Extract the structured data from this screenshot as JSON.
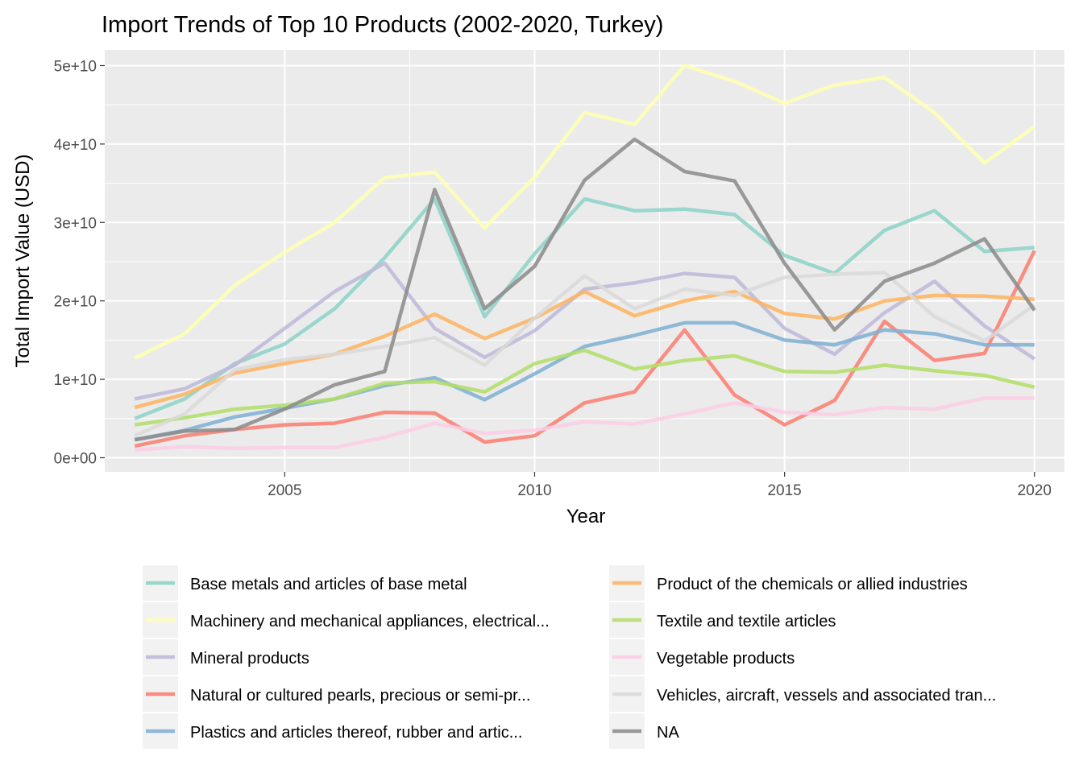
{
  "chart_data": {
    "type": "line",
    "title": "Import Trends of Top 10 Products (2002-2020, Turkey)",
    "xlabel": "Year",
    "ylabel": "Total Import Value (USD)",
    "xlim": [
      2001.4,
      2020.6
    ],
    "ylim": [
      -1800000000.0,
      52000000000.0
    ],
    "x_ticks": [
      2005,
      2010,
      2015,
      2020
    ],
    "x_tick_labels": [
      "2005",
      "2010",
      "2015",
      "2020"
    ],
    "y_ticks": [
      0,
      10000000000,
      20000000000,
      30000000000,
      40000000000,
      50000000000
    ],
    "y_tick_labels": [
      "0e+00",
      "1e+10",
      "2e+10",
      "3e+10",
      "4e+10",
      "5e+10"
    ],
    "grid": true,
    "legend_position": "bottom",
    "x": [
      2002,
      2003,
      2004,
      2005,
      2006,
      2007,
      2008,
      2009,
      2010,
      2011,
      2012,
      2013,
      2014,
      2015,
      2016,
      2017,
      2018,
      2019,
      2020
    ],
    "series": [
      {
        "name": "Base metals and articles of base metal",
        "color": "#8DD3C7",
        "values": [
          5000000000.0,
          7500000000.0,
          12000000000.0,
          14500000000.0,
          19000000000.0,
          25500000000.0,
          33000000000.0,
          18000000000.0,
          26000000000.0,
          33000000000.0,
          31500000000.0,
          31700000000.0,
          31000000000.0,
          25800000000.0,
          23500000000.0,
          29000000000.0,
          31500000000.0,
          26300000000.0,
          26800000000.0
        ]
      },
      {
        "name": "Machinery and mechanical appliances, electrical...",
        "color": "#FFFFB3",
        "values": [
          12700000000.0,
          15800000000.0,
          22000000000.0,
          26200000000.0,
          30000000000.0,
          35700000000.0,
          36400000000.0,
          29300000000.0,
          35800000000.0,
          44000000000.0,
          42500000000.0,
          50000000000.0,
          48000000000.0,
          45200000000.0,
          47500000000.0,
          48500000000.0,
          44000000000.0,
          37600000000.0,
          42200000000.0
        ]
      },
      {
        "name": "Mineral products",
        "color": "#BEBADA",
        "values": [
          7500000000.0,
          8800000000.0,
          11800000000.0,
          16500000000.0,
          21200000000.0,
          24800000000.0,
          16500000000.0,
          12800000000.0,
          16200000000.0,
          21500000000.0,
          22300000000.0,
          23500000000.0,
          23000000000.0,
          16500000000.0,
          13200000000.0,
          18500000000.0,
          22500000000.0,
          16800000000.0,
          12600000000.0
        ]
      },
      {
        "name": "Natural or cultured pearls, precious or semi-pr...",
        "color": "#FB8072",
        "values": [
          1500000000.0,
          2800000000.0,
          3600000000.0,
          4200000000.0,
          4400000000.0,
          5800000000.0,
          5700000000.0,
          2000000000.0,
          2800000000.0,
          7000000000.0,
          8400000000.0,
          16300000000.0,
          8000000000.0,
          4200000000.0,
          7300000000.0,
          17400000000.0,
          12400000000.0,
          13300000000.0,
          26400000000.0
        ]
      },
      {
        "name": "Plastics and articles thereof, rubber and artic...",
        "color": "#80B1D3",
        "values": [
          2300000000.0,
          3500000000.0,
          5200000000.0,
          6300000000.0,
          7500000000.0,
          9200000000.0,
          10200000000.0,
          7400000000.0,
          10700000000.0,
          14200000000.0,
          15600000000.0,
          17200000000.0,
          17200000000.0,
          15000000000.0,
          14400000000.0,
          16300000000.0,
          15800000000.0,
          14400000000.0,
          14400000000.0
        ]
      },
      {
        "name": "Product of the chemicals or allied industries",
        "color": "#FDB462",
        "values": [
          6400000000.0,
          8100000000.0,
          10800000000.0,
          12000000000.0,
          13200000000.0,
          15500000000.0,
          18300000000.0,
          15200000000.0,
          17800000000.0,
          21200000000.0,
          18100000000.0,
          20000000000.0,
          21200000000.0,
          18400000000.0,
          17700000000.0,
          20000000000.0,
          20700000000.0,
          20600000000.0,
          20200000000.0
        ]
      },
      {
        "name": "Textile and textile articles",
        "color": "#B3DE69",
        "values": [
          4200000000.0,
          5100000000.0,
          6200000000.0,
          6700000000.0,
          7500000000.0,
          9500000000.0,
          9700000000.0,
          8400000000.0,
          12000000000.0,
          13700000000.0,
          11300000000.0,
          12400000000.0,
          13000000000.0,
          11000000000.0,
          10900000000.0,
          11800000000.0,
          11100000000.0,
          10500000000.0,
          9000000000.0
        ]
      },
      {
        "name": "Vegetable products",
        "color": "#FCCDE5",
        "values": [
          1000000000.0,
          1400000000.0,
          1200000000.0,
          1300000000.0,
          1300000000.0,
          2600000000.0,
          4400000000.0,
          3100000000.0,
          3500000000.0,
          4600000000.0,
          4300000000.0,
          5600000000.0,
          7000000000.0,
          5800000000.0,
          5500000000.0,
          6400000000.0,
          6200000000.0,
          7600000000.0,
          7600000000.0
        ]
      },
      {
        "name": "Vehicles, aircraft, vessels and associated tran...",
        "color": "#D9D9D9",
        "values": [
          2800000000.0,
          5600000000.0,
          11200000000.0,
          12500000000.0,
          13200000000.0,
          14200000000.0,
          15300000000.0,
          11800000000.0,
          17800000000.0,
          23200000000.0,
          19000000000.0,
          21500000000.0,
          20700000000.0,
          23000000000.0,
          23400000000.0,
          23600000000.0,
          18000000000.0,
          14900000000.0,
          19500000000.0
        ]
      },
      {
        "name": "NA",
        "color": "#8C8C8C",
        "values": [
          2300000000.0,
          3400000000.0,
          3600000000.0,
          6200000000.0,
          9300000000.0,
          11000000000.0,
          34200000000.0,
          19000000000.0,
          24400000000.0,
          35400000000.0,
          40600000000.0,
          36500000000.0,
          35300000000.0,
          24800000000.0,
          16300000000.0,
          22500000000.0,
          24800000000.0,
          27900000000.0,
          18800000000.0
        ]
      }
    ]
  }
}
